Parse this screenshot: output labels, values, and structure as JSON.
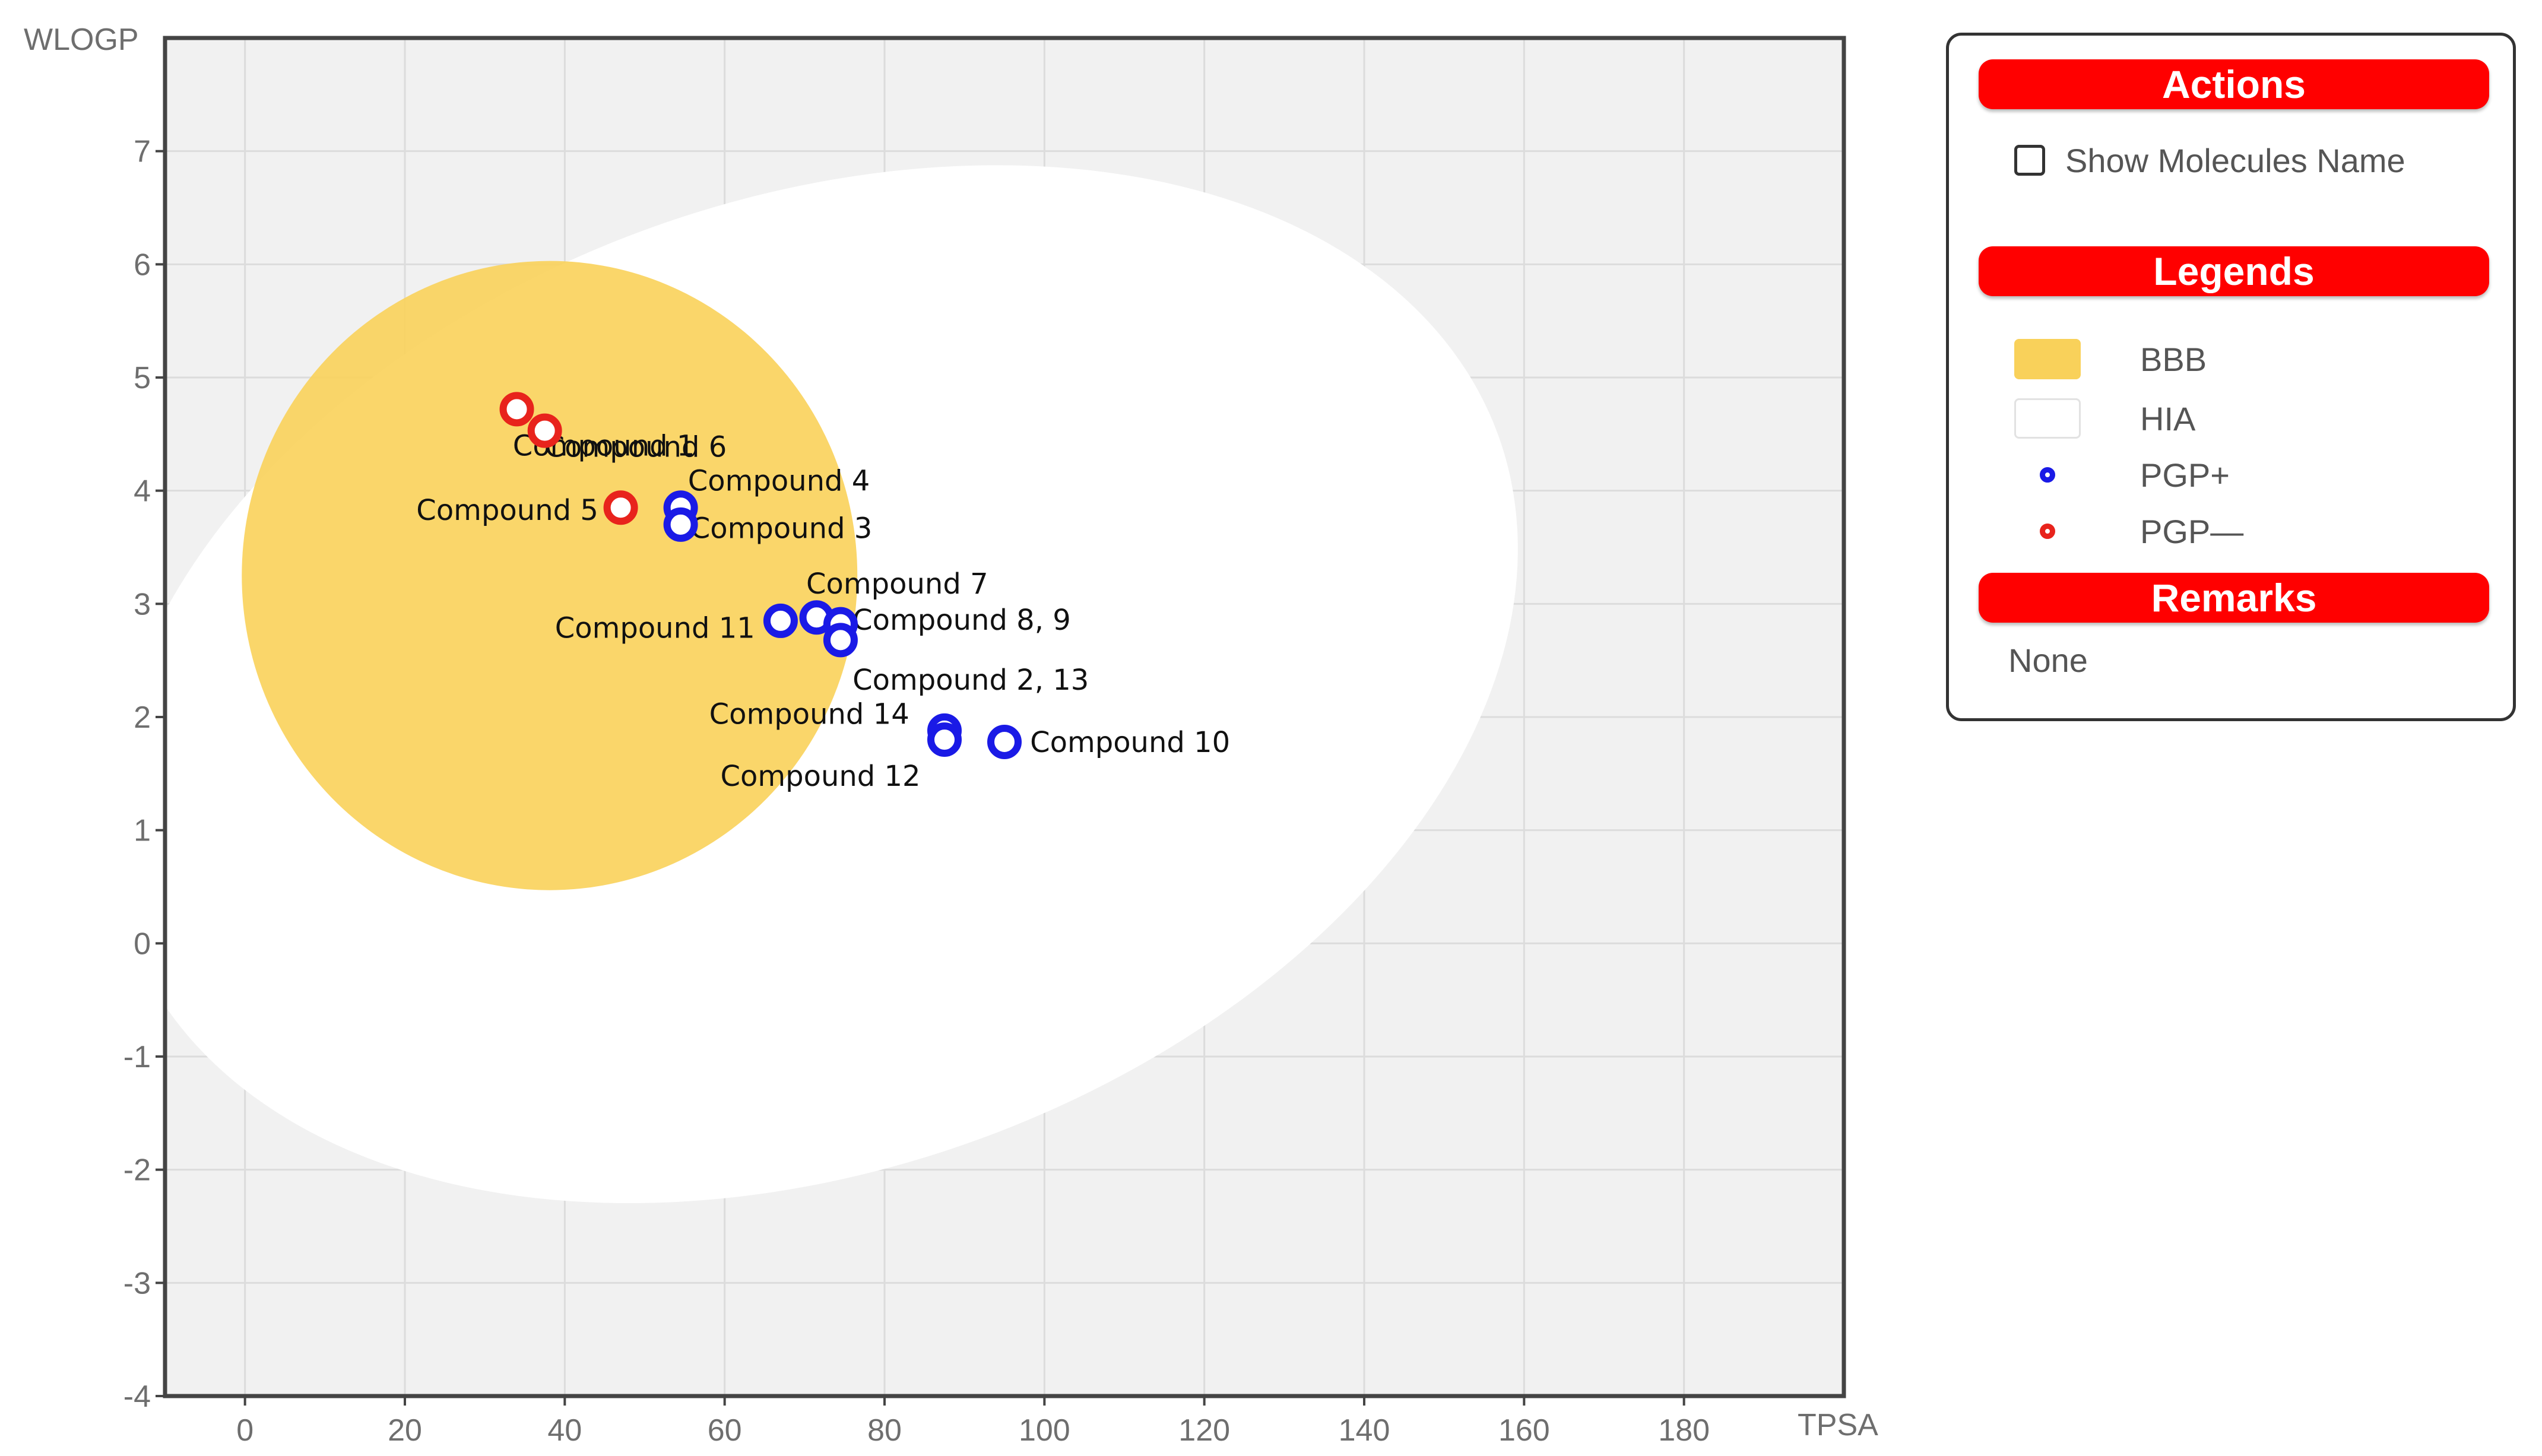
{
  "chart_data": {
    "type": "scatter",
    "title": "",
    "xlabel": "TPSA",
    "ylabel": "WLOGP",
    "xlim": [
      -10,
      200
    ],
    "ylim": [
      -4,
      8
    ],
    "x_ticks": [
      0,
      20,
      40,
      60,
      80,
      100,
      120,
      140,
      160,
      180
    ],
    "y_ticks": [
      -4,
      -3,
      -2,
      -1,
      0,
      1,
      2,
      3,
      4,
      5,
      6,
      7
    ],
    "grid": true,
    "regions": [
      {
        "name": "HIA",
        "shape": "ellipse",
        "center": [
          71.05,
          2.29
        ],
        "radii": [
          91.2,
          4.28
        ],
        "rotation_deg": -20,
        "color": "#ffffff"
      },
      {
        "name": "BBB",
        "shape": "ellipse",
        "center": [
          38.1,
          3.25
        ],
        "radii": [
          38.5,
          2.78
        ],
        "rotation_deg": 0,
        "color": "#f9d15a"
      }
    ],
    "series": [
      {
        "name": "PGP+",
        "color": "#1a1ae6",
        "points": [
          {
            "x": 54.5,
            "y": 3.85
          },
          {
            "x": 54.5,
            "y": 3.7
          },
          {
            "x": 67.0,
            "y": 2.85
          },
          {
            "x": 71.5,
            "y": 2.88
          },
          {
            "x": 74.5,
            "y": 2.82
          },
          {
            "x": 74.5,
            "y": 2.68
          },
          {
            "x": 87.5,
            "y": 1.88
          },
          {
            "x": 87.5,
            "y": 1.8
          },
          {
            "x": 95.0,
            "y": 1.78
          }
        ]
      },
      {
        "name": "PGP—",
        "color": "#e8231c",
        "points": [
          {
            "x": 34.0,
            "y": 4.72
          },
          {
            "x": 37.5,
            "y": 4.53
          },
          {
            "x": 47.0,
            "y": 3.85
          }
        ]
      }
    ],
    "annotations": [
      {
        "text": "Compound 1",
        "x": 34.0,
        "y": 4.72,
        "anchor": "start",
        "dx": -0.5,
        "dy": -0.32
      },
      {
        "text": "Compound 6",
        "x": 37.5,
        "y": 4.53,
        "anchor": "start",
        "dx": 0.0,
        "dy": -0.14
      },
      {
        "text": "Compound 5",
        "x": 47.0,
        "y": 3.85,
        "anchor": "end",
        "dx": -2.8,
        "dy": -0.02
      },
      {
        "text": "Compound 4",
        "x": 54.5,
        "y": 3.85,
        "anchor": "start",
        "dx": 0.9,
        "dy": 0.24
      },
      {
        "text": "Compound 3",
        "x": 54.5,
        "y": 3.7,
        "anchor": "start",
        "dx": 1.2,
        "dy": -0.03
      },
      {
        "text": "Compound 7",
        "x": 71.5,
        "y": 2.88,
        "anchor": "start",
        "dx": -1.3,
        "dy": 0.3
      },
      {
        "text": "Compound 11",
        "x": 67.0,
        "y": 2.85,
        "anchor": "end",
        "dx": -3.2,
        "dy": -0.06
      },
      {
        "text": "Compound 8, 9",
        "x": 74.5,
        "y": 2.82,
        "anchor": "start",
        "dx": 1.5,
        "dy": 0.04
      },
      {
        "text": "Compound 2, 13",
        "x": 74.5,
        "y": 2.68,
        "anchor": "start",
        "dx": 1.5,
        "dy": -0.35
      },
      {
        "text": "Compound 14",
        "x": 87.5,
        "y": 1.88,
        "anchor": "end",
        "dx": -4.4,
        "dy": 0.15
      },
      {
        "text": "Compound 12",
        "x": 87.5,
        "y": 1.8,
        "anchor": "end",
        "dx": -3.0,
        "dy": -0.32
      },
      {
        "text": "Compound 10",
        "x": 95.0,
        "y": 1.78,
        "anchor": "start",
        "dx": 3.2,
        "dy": 0.0
      }
    ],
    "legend_placement": "right"
  },
  "panel": {
    "actions_title": "Actions",
    "show_names_label": "Show Molecules Name",
    "legends_title": "Legends",
    "legends": [
      {
        "label": "BBB",
        "kind": "area",
        "color": "#f9d15a"
      },
      {
        "label": "HIA",
        "kind": "area",
        "color": "#ffffff"
      },
      {
        "label": "PGP+",
        "kind": "dot",
        "color": "#1a1ae6"
      },
      {
        "label": "PGP—",
        "kind": "dot",
        "color": "#e8231c"
      }
    ],
    "remarks_title": "Remarks",
    "remarks_text": "None"
  }
}
